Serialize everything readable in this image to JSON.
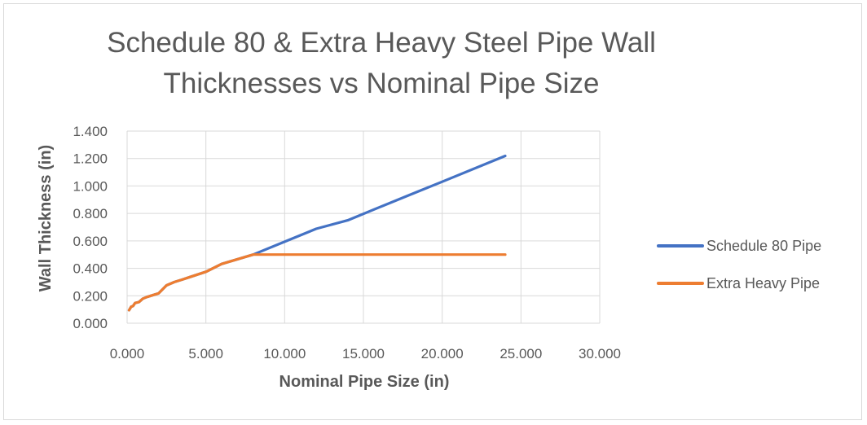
{
  "chart_data": {
    "type": "line",
    "title_line1": "Schedule 80 & Extra Heavy Steel Pipe Wall",
    "title_line2": "Thicknesses vs Nominal Pipe Size",
    "xlabel": "Nominal Pipe Size (in)",
    "ylabel": "Wall Thickness (in)",
    "xlim": [
      0,
      30
    ],
    "ylim": [
      0,
      1.4
    ],
    "xticks": [
      0,
      5,
      10,
      15,
      20,
      25,
      30
    ],
    "yticks": [
      0,
      0.2,
      0.4,
      0.6,
      0.8,
      1.0,
      1.2,
      1.4
    ],
    "xtick_labels": [
      "0.000",
      "5.000",
      "10.000",
      "15.000",
      "20.000",
      "25.000",
      "30.000"
    ],
    "ytick_labels": [
      "0.000",
      "0.200",
      "0.400",
      "0.600",
      "0.800",
      "1.000",
      "1.200",
      "1.400"
    ],
    "grid": true,
    "legend_position": "right",
    "series": [
      {
        "name": "Schedule 80 Pipe",
        "color": "#4472c4",
        "x": [
          0.125,
          0.25,
          0.375,
          0.5,
          0.75,
          1,
          1.25,
          1.5,
          2,
          2.5,
          3,
          3.5,
          4,
          5,
          6,
          8,
          10,
          12,
          14,
          16,
          18,
          20,
          24
        ],
        "y": [
          0.095,
          0.119,
          0.126,
          0.147,
          0.154,
          0.179,
          0.191,
          0.2,
          0.218,
          0.276,
          0.3,
          0.318,
          0.337,
          0.375,
          0.432,
          0.5,
          0.594,
          0.688,
          0.75,
          0.844,
          0.938,
          1.031,
          1.219
        ]
      },
      {
        "name": "Extra Heavy Pipe",
        "color": "#ed7d31",
        "x": [
          0.125,
          0.25,
          0.375,
          0.5,
          0.75,
          1,
          1.25,
          1.5,
          2,
          2.5,
          3,
          3.5,
          4,
          5,
          6,
          8,
          10,
          12,
          14,
          16,
          18,
          20,
          24
        ],
        "y": [
          0.095,
          0.119,
          0.126,
          0.147,
          0.154,
          0.179,
          0.191,
          0.2,
          0.218,
          0.276,
          0.3,
          0.318,
          0.337,
          0.375,
          0.432,
          0.5,
          0.5,
          0.5,
          0.5,
          0.5,
          0.5,
          0.5,
          0.5
        ]
      }
    ]
  }
}
